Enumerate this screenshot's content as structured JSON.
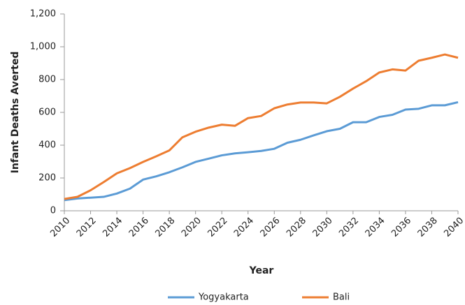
{
  "chart_data": {
    "type": "line",
    "x_label": "Year",
    "y_label": "Infant Deaths Averted",
    "x": [
      2010,
      2011,
      2012,
      2013,
      2014,
      2015,
      2016,
      2017,
      2018,
      2019,
      2020,
      2021,
      2022,
      2023,
      2024,
      2025,
      2026,
      2027,
      2028,
      2029,
      2030,
      2031,
      2032,
      2033,
      2034,
      2035,
      2036,
      2037,
      2038,
      2039,
      2040
    ],
    "series": [
      {
        "name": "Yogyakarta",
        "color": "#5b9bd5",
        "values": [
          65,
          75,
          80,
          85,
          105,
          135,
          190,
          210,
          235,
          265,
          298,
          318,
          338,
          350,
          357,
          365,
          378,
          415,
          433,
          460,
          485,
          500,
          540,
          540,
          572,
          585,
          617,
          622,
          643,
          643,
          662
        ]
      },
      {
        "name": "Bali",
        "color": "#ed7d31",
        "values": [
          72,
          85,
          125,
          175,
          228,
          260,
          298,
          332,
          368,
          448,
          482,
          507,
          525,
          518,
          565,
          578,
          625,
          648,
          660,
          660,
          655,
          695,
          745,
          790,
          843,
          862,
          855,
          915,
          933,
          953,
          933
        ]
      }
    ],
    "xlim": [
      2010,
      2040
    ],
    "xticks": [
      2010,
      2012,
      2014,
      2016,
      2018,
      2020,
      2022,
      2024,
      2026,
      2028,
      2030,
      2032,
      2034,
      2036,
      2038,
      2040
    ],
    "ylim": [
      0,
      1200
    ],
    "yticks": [
      0,
      200,
      400,
      600,
      800,
      {
        "value": 1000,
        "label": "1,000"
      },
      {
        "value": 1200,
        "label": "1,200"
      }
    ],
    "grid": false,
    "legend": "bottom"
  }
}
